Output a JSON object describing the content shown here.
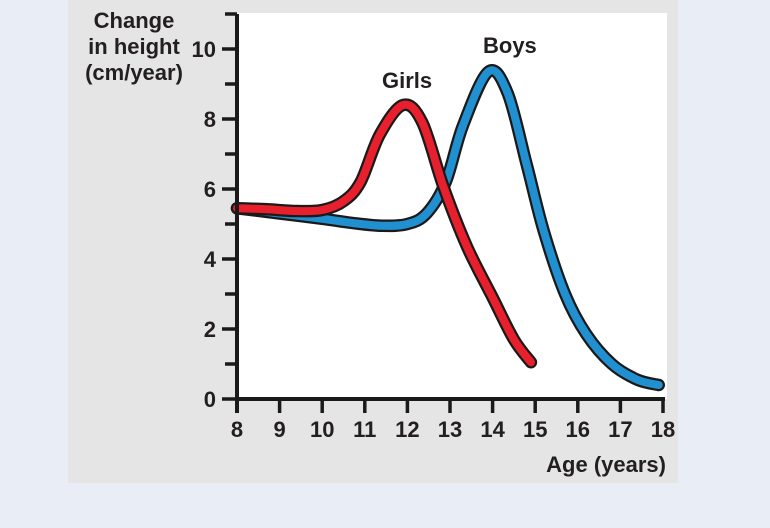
{
  "page": {
    "background_color": "#e9edf6",
    "panel_color": "#e5e5e6",
    "plot_background": "#ffffff",
    "axis_color": "#1a1a1a",
    "text_color": "#231f20"
  },
  "chart_data": {
    "type": "line",
    "title": "",
    "xlabel": "Age (years)",
    "ylabel": "Change in height (cm/year)",
    "ylabel_multiline": "Change\nin height\n(cm/year)",
    "xlim": [
      8,
      18
    ],
    "ylim": [
      0,
      11
    ],
    "x_ticks": [
      8,
      9,
      10,
      11,
      12,
      13,
      14,
      15,
      16,
      17,
      18
    ],
    "y_major_ticks": [
      0,
      2,
      4,
      6,
      8,
      10
    ],
    "y_minor_ticks": [
      1,
      3,
      5,
      7,
      9,
      11
    ],
    "grid": false,
    "legend_position": "labels-above-peaks",
    "series": [
      {
        "name": "Boys",
        "color": "#2090d0",
        "outline_color": "#1a1a1a",
        "peak": {
          "age": 13.9,
          "value": 9.35
        },
        "points": [
          [
            8,
            5.45
          ],
          [
            9,
            5.3
          ],
          [
            10,
            5.15
          ],
          [
            10.7,
            5.03
          ],
          [
            11.4,
            4.95
          ],
          [
            12,
            5.0
          ],
          [
            12.45,
            5.3
          ],
          [
            12.9,
            6.2
          ],
          [
            13.3,
            7.8
          ],
          [
            13.9,
            9.35
          ],
          [
            14.35,
            8.75
          ],
          [
            14.8,
            6.7
          ],
          [
            15.2,
            4.8
          ],
          [
            15.7,
            3.0
          ],
          [
            16.2,
            1.85
          ],
          [
            16.8,
            1.0
          ],
          [
            17.4,
            0.55
          ],
          [
            17.9,
            0.4
          ]
        ]
      },
      {
        "name": "Girls",
        "color": "#e8202d",
        "outline_color": "#1a1a1a",
        "peak": {
          "age": 11.9,
          "value": 8.4
        },
        "points": [
          [
            8,
            5.45
          ],
          [
            8.7,
            5.42
          ],
          [
            9.4,
            5.37
          ],
          [
            10,
            5.4
          ],
          [
            10.5,
            5.65
          ],
          [
            10.9,
            6.2
          ],
          [
            11.35,
            7.55
          ],
          [
            11.9,
            8.4
          ],
          [
            12.35,
            7.9
          ],
          [
            12.85,
            6.05
          ],
          [
            13.4,
            4.35
          ],
          [
            14,
            2.9
          ],
          [
            14.5,
            1.7
          ],
          [
            14.9,
            1.05
          ]
        ]
      }
    ]
  }
}
